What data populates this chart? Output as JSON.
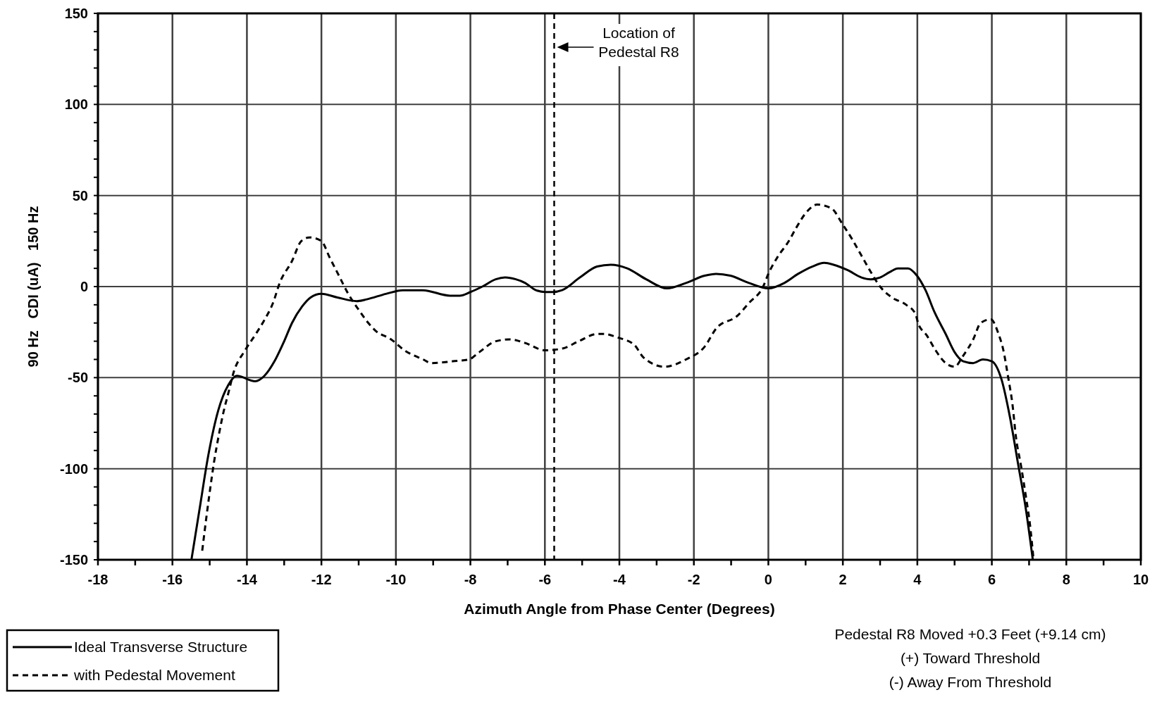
{
  "chart_data": {
    "type": "line",
    "xlabel": "Azimuth Angle from Phase Center (Degrees)",
    "ylabel": "90 Hz   CDI (uA)   150 Hz",
    "xlim": [
      -18,
      10
    ],
    "ylim": [
      -150,
      150
    ],
    "xticks": [
      -18,
      {
        "value": -17,
        "label": null
      },
      -16,
      {
        "value": -15,
        "label": null
      },
      -14,
      {
        "value": -13,
        "label": null
      },
      -12,
      {
        "value": -11,
        "label": null
      },
      -10,
      {
        "value": -9,
        "label": null
      },
      -8,
      {
        "value": -7,
        "label": null
      },
      -6,
      {
        "value": -5,
        "label": null
      },
      -4,
      {
        "value": -3,
        "label": null
      },
      -2,
      {
        "value": -1,
        "label": null
      },
      0,
      {
        "value": 1,
        "label": null
      },
      2,
      {
        "value": 3,
        "label": null
      },
      4,
      {
        "value": 5,
        "label": null
      },
      6,
      {
        "value": 7,
        "label": null
      },
      8,
      {
        "value": 9,
        "label": null
      },
      10
    ],
    "yticks": [
      -150,
      {
        "value": -140,
        "label": null
      },
      {
        "value": -130,
        "label": null
      },
      {
        "value": -120,
        "label": null
      },
      {
        "value": -110,
        "label": null
      },
      -100,
      {
        "value": -90,
        "label": null
      },
      {
        "value": -80,
        "label": null
      },
      {
        "value": -70,
        "label": null
      },
      {
        "value": -60,
        "label": null
      },
      -50,
      {
        "value": -40,
        "label": null
      },
      {
        "value": -30,
        "label": null
      },
      {
        "value": -20,
        "label": null
      },
      {
        "value": -10,
        "label": null
      },
      0,
      {
        "value": 10,
        "label": null
      },
      {
        "value": 20,
        "label": null
      },
      {
        "value": 30,
        "label": null
      },
      {
        "value": 40,
        "label": null
      },
      50,
      {
        "value": 60,
        "label": null
      },
      {
        "value": 70,
        "label": null
      },
      {
        "value": 80,
        "label": null
      },
      {
        "value": 90,
        "label": null
      },
      100,
      {
        "value": 110,
        "label": null
      },
      {
        "value": 120,
        "label": null
      },
      {
        "value": 130,
        "label": null
      },
      {
        "value": 140,
        "label": null
      },
      150
    ],
    "grid": true,
    "legend": "bottom left",
    "marker": "none",
    "series": [
      {
        "name": "Ideal Transverse Structure",
        "color": "#000000",
        "line_style": "solid",
        "x": [
          -15.49,
          -15.27,
          -15.04,
          -14.77,
          -14.5,
          -14.27,
          -13.78,
          -13.53,
          -13.26,
          -13.0,
          -12.79,
          -12.52,
          -12.29,
          -12.0,
          -11.57,
          -11.05,
          -10.78,
          -10.27,
          -9.81,
          -9.28,
          -8.55,
          -8.29,
          -8.0,
          -7.68,
          -7.32,
          -7.07,
          -6.78,
          -6.53,
          -6.24,
          -5.99,
          -5.78,
          -5.54,
          -5.06,
          -4.6,
          -4.23,
          -3.79,
          -3.28,
          -2.72,
          -2.21,
          -1.71,
          -1.4,
          -1.02,
          -0.52,
          0.0,
          0.43,
          0.8,
          1.18,
          1.5,
          1.75,
          2.13,
          2.5,
          2.75,
          3.0,
          3.26,
          3.48,
          3.75,
          3.99,
          4.22,
          4.46,
          4.76,
          5.0,
          5.23,
          5.5,
          5.76,
          6.0,
          6.26,
          6.48,
          6.71,
          6.92,
          7.1
        ],
        "values": [
          -150,
          -122,
          -93,
          -68,
          -54,
          -49,
          -52,
          -49,
          -41,
          -30,
          -20,
          -11,
          -6,
          -4,
          -6,
          -8,
          -7,
          -4,
          -2,
          -2,
          -5,
          -5,
          -3,
          0,
          4,
          5,
          4,
          2,
          -2,
          -3,
          -3,
          -2,
          5,
          11,
          12,
          10,
          4,
          -1,
          2,
          6,
          7,
          6,
          2,
          -1,
          2,
          7,
          11,
          13,
          12,
          9,
          5,
          4,
          5,
          8,
          10,
          10,
          6,
          -2,
          -14,
          -26,
          -36,
          -41,
          -42,
          -40,
          -41,
          -51,
          -71,
          -98,
          -123,
          -150
        ]
      },
      {
        "name": "with Pedestal Movement",
        "color": "#000000",
        "line_style": "dashed",
        "x": [
          -15.2,
          -15.14,
          -15.02,
          -14.88,
          -14.75,
          -14.63,
          -14.48,
          -14.37,
          -14.05,
          -13.76,
          -13.55,
          -13.3,
          -13.12,
          -12.79,
          -12.54,
          -12.32,
          -12.0,
          -11.78,
          -11.53,
          -11.28,
          -10.99,
          -10.74,
          -10.56,
          -10.13,
          -9.77,
          -9.27,
          -9.05,
          -8.47,
          -8.04,
          -7.76,
          -7.32,
          -6.93,
          -6.53,
          -5.99,
          -5.53,
          -5.09,
          -4.6,
          -4.42,
          -4.04,
          -3.6,
          -3.35,
          -2.79,
          -2.21,
          -1.71,
          -1.4,
          -0.83,
          -0.52,
          -0.14,
          0.0,
          0.24,
          0.55,
          0.74,
          1.03,
          1.31,
          1.69,
          2.0,
          2.25,
          2.5,
          2.75,
          3.0,
          3.32,
          3.7,
          3.95,
          4.02,
          4.26,
          4.49,
          4.76,
          5.0,
          5.23,
          5.5,
          5.7,
          5.97,
          6.18,
          6.31,
          6.44,
          6.55,
          6.65,
          6.78,
          6.92,
          7.02,
          7.12
        ],
        "values": [
          -145,
          -135,
          -116,
          -96,
          -81,
          -69,
          -57,
          -48,
          -35,
          -26,
          -19,
          -9,
          2,
          14,
          25,
          27,
          25,
          16,
          6,
          -4,
          -13,
          -20,
          -24,
          -29,
          -35,
          -40,
          -42,
          -41,
          -40,
          -36,
          -30,
          -29,
          -31,
          -35,
          -34,
          -30,
          -26,
          -26,
          -28,
          -32,
          -39,
          -44,
          -40,
          -33,
          -23,
          -16,
          -9,
          0,
          7,
          16,
          25,
          32,
          41,
          45,
          43,
          34,
          26,
          17,
          8,
          0,
          -6,
          -10,
          -15,
          -20,
          -27,
          -35,
          -42,
          -44,
          -38,
          -29,
          -20,
          -18,
          -26,
          -35,
          -50,
          -64,
          -83,
          -98,
          -116,
          -130,
          -150
        ]
      }
    ],
    "ref_lines": [
      {
        "axis": "x",
        "value": -5.75,
        "label": "Location of\nPedestal R8",
        "color": "#000000",
        "line_style": "dashed"
      }
    ],
    "annotations": [
      "Pedestal R8 Moved +0.3 Feet (+9.14 cm)\n(+) Toward Threshold\n(-) Away From Threshold"
    ]
  }
}
